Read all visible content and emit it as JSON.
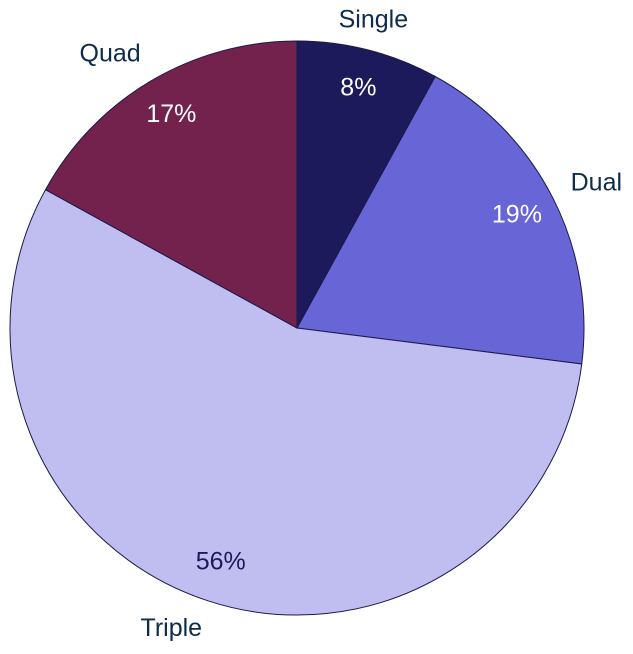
{
  "chart_data": {
    "type": "pie",
    "categories": [
      "Single",
      "Dual",
      "Triple",
      "Quad"
    ],
    "values": [
      8,
      19,
      56,
      17
    ],
    "value_labels": [
      "8%",
      "19%",
      "56%",
      "17%"
    ],
    "colors": [
      "#1c1a5a",
      "#6865d6",
      "#c0bef0",
      "#72224c"
    ],
    "label_colors": [
      "#ffffff",
      "#ffffff",
      "#1c1a5a",
      "#ffffff"
    ]
  }
}
